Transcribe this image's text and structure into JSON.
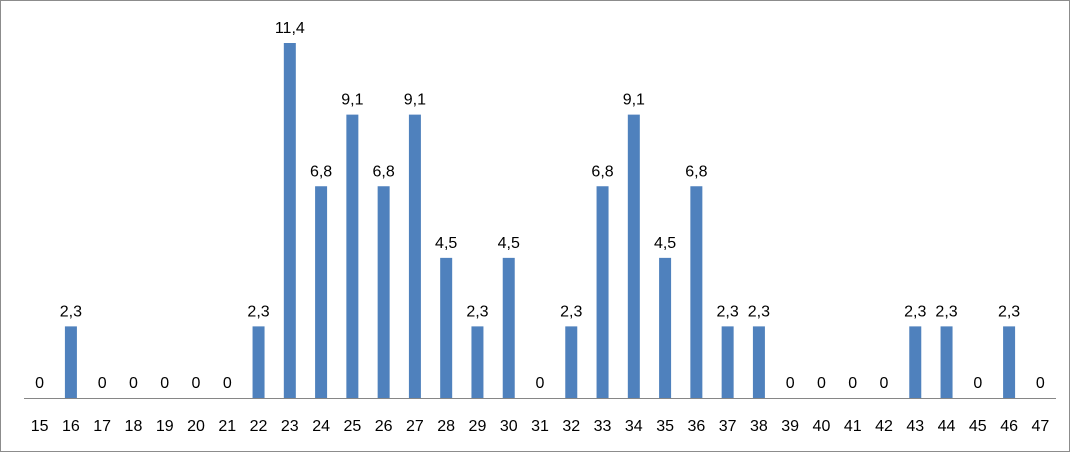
{
  "chart_data": {
    "type": "bar",
    "title": "",
    "xlabel": "",
    "ylabel": "",
    "categories": [
      "15",
      "16",
      "17",
      "18",
      "19",
      "20",
      "21",
      "22",
      "23",
      "24",
      "25",
      "26",
      "27",
      "28",
      "29",
      "30",
      "31",
      "32",
      "33",
      "34",
      "35",
      "36",
      "37",
      "38",
      "39",
      "40",
      "41",
      "42",
      "43",
      "44",
      "45",
      "46",
      "47"
    ],
    "values": [
      0,
      2.3,
      0,
      0,
      0,
      0,
      0,
      2.3,
      11.4,
      6.8,
      9.1,
      6.8,
      9.1,
      4.5,
      2.3,
      4.5,
      0,
      2.3,
      6.8,
      9.1,
      4.5,
      6.8,
      2.3,
      2.3,
      0,
      0,
      0,
      0,
      2.3,
      2.3,
      0,
      2.3,
      0
    ],
    "data_labels": [
      "0",
      "2,3",
      "0",
      "0",
      "0",
      "0",
      "0",
      "2,3",
      "11,4",
      "6,8",
      "9,1",
      "6,8",
      "9,1",
      "4,5",
      "2,3",
      "4,5",
      "0",
      "2,3",
      "6,8",
      "9,1",
      "4,5",
      "6,8",
      "2,3",
      "2,3",
      "0",
      "0",
      "0",
      "0",
      "2,3",
      "2,3",
      "0",
      "2,3",
      "0"
    ],
    "ylim": [
      0,
      11.4
    ],
    "grid": false,
    "legend": "none",
    "bar_color": "#4F81BD",
    "axis_color": "#868686"
  }
}
